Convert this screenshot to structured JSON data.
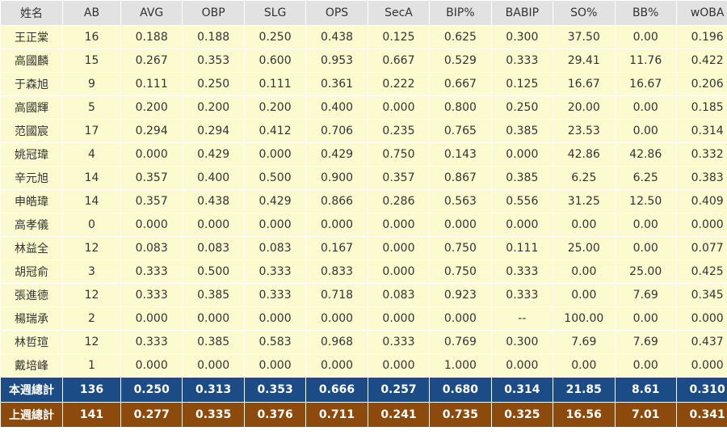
{
  "columns": [
    "姓名",
    "AB",
    "AVG",
    "OBP",
    "SLG",
    "OPS",
    "SecA",
    "BIP%",
    "BABIP",
    "SO%",
    "BB%",
    "wOBA"
  ],
  "rows": [
    [
      "王正棠",
      "16",
      "0.188",
      "0.188",
      "0.250",
      "0.438",
      "0.125",
      "0.625",
      "0.300",
      "37.50",
      "0.00",
      "0.196"
    ],
    [
      "高國麟",
      "15",
      "0.267",
      "0.353",
      "0.600",
      "0.953",
      "0.667",
      "0.529",
      "0.333",
      "29.41",
      "11.76",
      "0.422"
    ],
    [
      "于森旭",
      "9",
      "0.111",
      "0.250",
      "0.111",
      "0.361",
      "0.222",
      "0.667",
      "0.125",
      "16.67",
      "16.67",
      "0.206"
    ],
    [
      "高國輝",
      "5",
      "0.200",
      "0.200",
      "0.200",
      "0.400",
      "0.000",
      "0.800",
      "0.250",
      "20.00",
      "0.00",
      "0.185"
    ],
    [
      "范國宸",
      "17",
      "0.294",
      "0.294",
      "0.412",
      "0.706",
      "0.235",
      "0.765",
      "0.385",
      "23.53",
      "0.00",
      "0.314"
    ],
    [
      "姚冠瑋",
      "4",
      "0.000",
      "0.429",
      "0.000",
      "0.429",
      "0.750",
      "0.143",
      "0.000",
      "42.86",
      "42.86",
      "0.332"
    ],
    [
      "辛元旭",
      "14",
      "0.357",
      "0.400",
      "0.500",
      "0.900",
      "0.357",
      "0.867",
      "0.385",
      "6.25",
      "6.25",
      "0.383"
    ],
    [
      "申皓瑋",
      "14",
      "0.357",
      "0.438",
      "0.429",
      "0.866",
      "0.286",
      "0.563",
      "0.556",
      "31.25",
      "12.50",
      "0.409"
    ],
    [
      "高孝儀",
      "0",
      "0.000",
      "0.000",
      "0.000",
      "0.000",
      "0.000",
      "0.000",
      "0.000",
      "0.00",
      "0.00",
      "0.000"
    ],
    [
      "林益全",
      "12",
      "0.083",
      "0.083",
      "0.083",
      "0.167",
      "0.000",
      "0.750",
      "0.111",
      "25.00",
      "0.00",
      "0.077"
    ],
    [
      "胡冠俞",
      "3",
      "0.333",
      "0.500",
      "0.333",
      "0.833",
      "0.000",
      "0.750",
      "0.333",
      "0.00",
      "25.00",
      "0.425"
    ],
    [
      "張進德",
      "12",
      "0.333",
      "0.385",
      "0.333",
      "0.718",
      "0.083",
      "0.923",
      "0.333",
      "0.00",
      "7.69",
      "0.345"
    ],
    [
      "楊瑞承",
      "2",
      "0.000",
      "0.000",
      "0.000",
      "0.000",
      "0.000",
      "0.000",
      "--",
      "100.00",
      "0.00",
      "0.000"
    ],
    [
      "林哲瑄",
      "12",
      "0.333",
      "0.385",
      "0.583",
      "0.968",
      "0.333",
      "0.769",
      "0.300",
      "7.69",
      "7.69",
      "0.437"
    ],
    [
      "戴培峰",
      "1",
      "0.000",
      "0.000",
      "0.000",
      "0.000",
      "0.000",
      "1.000",
      "0.000",
      "0.00",
      "0.00",
      "0.000"
    ]
  ],
  "totals": [
    {
      "key": "this-week",
      "cells": [
        "本週總計",
        "136",
        "0.250",
        "0.313",
        "0.353",
        "0.666",
        "0.257",
        "0.680",
        "0.314",
        "21.85",
        "8.61",
        "0.310"
      ]
    },
    {
      "key": "last-week",
      "cells": [
        "上週總計",
        "141",
        "0.277",
        "0.335",
        "0.376",
        "0.711",
        "0.241",
        "0.735",
        "0.325",
        "16.56",
        "7.01",
        "0.341"
      ]
    }
  ],
  "colors": {
    "header_bg": "#e2e2e2",
    "row_bg": "#fcfbd0",
    "this_week_bg": "#1c4c86",
    "last_week_bg": "#8d4a0d"
  }
}
